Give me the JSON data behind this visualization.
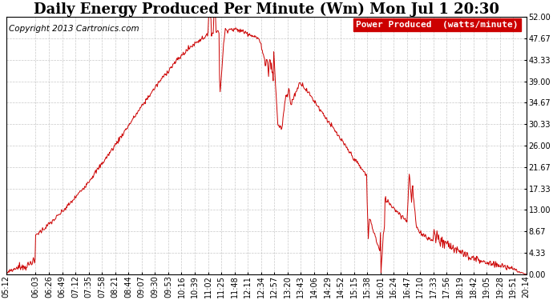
{
  "title": "Daily Energy Produced Per Minute (Wm) Mon Jul 1 20:30",
  "copyright": "Copyright 2013 Cartronics.com",
  "legend_label": "Power Produced  (watts/minute)",
  "line_color": "#cc0000",
  "background_color": "#ffffff",
  "grid_color": "#aaaaaa",
  "ylim": [
    0,
    52.0
  ],
  "yticks": [
    0.0,
    4.33,
    8.67,
    13.0,
    17.33,
    21.67,
    26.0,
    30.33,
    34.67,
    39.0,
    43.33,
    47.67,
    52.0
  ],
  "x_labels": [
    "05:12",
    "06:03",
    "06:26",
    "06:49",
    "07:12",
    "07:35",
    "07:58",
    "08:21",
    "08:44",
    "09:07",
    "09:30",
    "09:53",
    "10:16",
    "10:39",
    "11:02",
    "11:25",
    "11:48",
    "12:11",
    "12:34",
    "12:57",
    "13:20",
    "13:43",
    "14:06",
    "14:29",
    "14:52",
    "15:15",
    "15:38",
    "16:01",
    "16:24",
    "16:47",
    "17:10",
    "17:33",
    "17:56",
    "18:19",
    "18:42",
    "19:05",
    "19:28",
    "19:51",
    "20:14"
  ],
  "title_fontsize": 13,
  "tick_fontsize": 7,
  "legend_fontsize": 8,
  "copyright_fontsize": 7.5,
  "start_time": "05:12",
  "end_time": "20:14"
}
